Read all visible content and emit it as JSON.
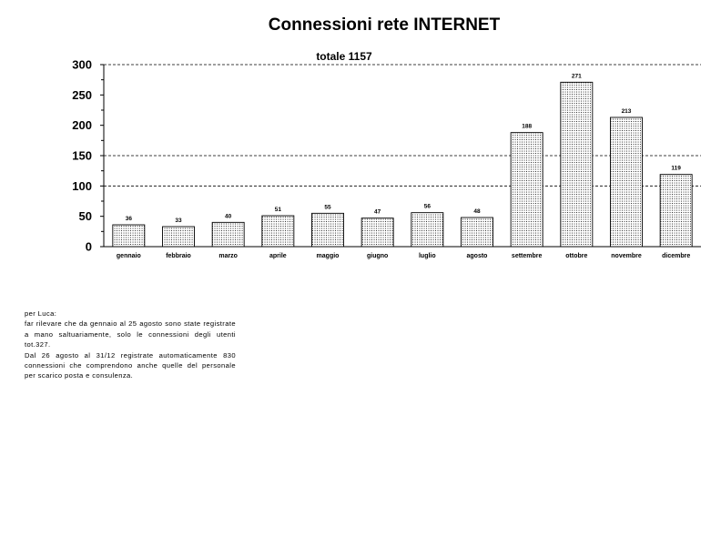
{
  "chart_data": {
    "type": "bar",
    "title": "Connessioni rete INTERNET",
    "subtitle": "totale 1157",
    "xlabel": "",
    "ylabel": "",
    "categories": [
      "gennaio",
      "febbraio",
      "marzo",
      "aprile",
      "maggio",
      "giugno",
      "luglio",
      "agosto",
      "settembre",
      "ottobre",
      "novembre",
      "dicembre"
    ],
    "values": [
      36,
      33,
      40,
      51,
      55,
      47,
      56,
      48,
      188,
      271,
      213,
      119
    ],
    "data_labels": [
      "36",
      "33",
      "40",
      "51",
      "55",
      "47",
      "56",
      "48",
      "188",
      "271",
      "213",
      "119"
    ],
    "ylim": [
      0,
      300
    ],
    "yticks": [
      "0",
      "50",
      "100",
      "150",
      "200",
      "250",
      "300"
    ],
    "ytick_values": [
      0,
      50,
      100,
      150,
      200,
      250,
      300
    ],
    "gridlines": "dashed at 100, 150 and 300",
    "legend": "none",
    "bar_fill": "dotted pattern",
    "colors": {
      "bar_edge": "#000000",
      "dots": "#000000",
      "background": "#ffffff"
    }
  },
  "note": {
    "lines": [
      "per Luca:",
      "far rilevare che da gennaio al 25 agosto sono state registrate a mano saltuariamente, solo le connessioni degli utenti tot.327.",
      "Dal 26 agosto al 31/12 registrate automaticamente 830 connessioni che comprendono anche quelle del personale per scarico posta e consulenza."
    ]
  }
}
